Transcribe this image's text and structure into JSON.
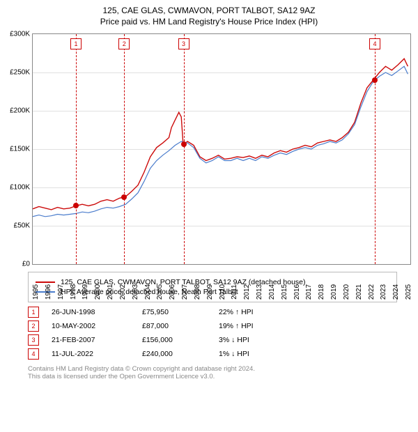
{
  "title_line1": "125, CAE GLAS, CWMAVON, PORT TALBOT, SA12 9AZ",
  "title_line2": "Price paid vs. HM Land Registry's House Price Index (HPI)",
  "axes": {
    "y_labels": [
      "£0",
      "£50K",
      "£100K",
      "£150K",
      "£200K",
      "£250K",
      "£300K"
    ],
    "y_min": 0,
    "y_max": 300,
    "x_labels": [
      "1995",
      "1996",
      "1997",
      "1998",
      "1999",
      "2000",
      "2001",
      "2002",
      "2003",
      "2004",
      "2005",
      "2006",
      "2007",
      "2008",
      "2009",
      "2010",
      "2011",
      "2012",
      "2013",
      "2014",
      "2015",
      "2016",
      "2017",
      "2018",
      "2019",
      "2020",
      "2021",
      "2022",
      "2023",
      "2024",
      "2025"
    ],
    "x_min": 1995,
    "x_max": 2025.5,
    "grid_color": "#e0e0e0",
    "border_color": "#888888"
  },
  "series": [
    {
      "label": "125, CAE GLAS, CWMAVON, PORT TALBOT, SA12 9AZ (detached house)",
      "color": "#cc0a0a",
      "width": 1.4,
      "points": [
        [
          1995,
          72
        ],
        [
          1995.5,
          75
        ],
        [
          1996,
          73
        ],
        [
          1996.5,
          71
        ],
        [
          1997,
          74
        ],
        [
          1997.5,
          72
        ],
        [
          1998,
          73
        ],
        [
          1998.5,
          76
        ],
        [
          1999,
          78
        ],
        [
          1999.5,
          76
        ],
        [
          2000,
          78
        ],
        [
          2000.5,
          82
        ],
        [
          2001,
          84
        ],
        [
          2001.5,
          82
        ],
        [
          2002,
          86
        ],
        [
          2002.5,
          88
        ],
        [
          2003,
          95
        ],
        [
          2003.5,
          103
        ],
        [
          2004,
          120
        ],
        [
          2004.5,
          140
        ],
        [
          2005,
          152
        ],
        [
          2005.5,
          158
        ],
        [
          2006,
          165
        ],
        [
          2006.2,
          178
        ],
        [
          2006.5,
          188
        ],
        [
          2006.8,
          198
        ],
        [
          2007,
          192
        ],
        [
          2007.15,
          156
        ],
        [
          2007.5,
          160
        ],
        [
          2008,
          155
        ],
        [
          2008.5,
          140
        ],
        [
          2009,
          135
        ],
        [
          2009.5,
          138
        ],
        [
          2010,
          142
        ],
        [
          2010.5,
          137
        ],
        [
          2011,
          138
        ],
        [
          2011.5,
          140
        ],
        [
          2012,
          139
        ],
        [
          2012.5,
          141
        ],
        [
          2013,
          138
        ],
        [
          2013.5,
          142
        ],
        [
          2014,
          140
        ],
        [
          2014.5,
          145
        ],
        [
          2015,
          148
        ],
        [
          2015.5,
          146
        ],
        [
          2016,
          150
        ],
        [
          2016.5,
          152
        ],
        [
          2017,
          155
        ],
        [
          2017.5,
          153
        ],
        [
          2018,
          158
        ],
        [
          2018.5,
          160
        ],
        [
          2019,
          162
        ],
        [
          2019.5,
          160
        ],
        [
          2020,
          165
        ],
        [
          2020.5,
          172
        ],
        [
          2021,
          185
        ],
        [
          2021.5,
          210
        ],
        [
          2022,
          230
        ],
        [
          2022.5,
          240
        ],
        [
          2023,
          250
        ],
        [
          2023.5,
          258
        ],
        [
          2024,
          253
        ],
        [
          2024.5,
          260
        ],
        [
          2025,
          268
        ],
        [
          2025.3,
          258
        ]
      ]
    },
    {
      "label": "HPI: Average price, detached house, Neath Port Talbot",
      "color": "#4a7ccc",
      "width": 1.2,
      "points": [
        [
          1995,
          62
        ],
        [
          1995.5,
          64
        ],
        [
          1996,
          62
        ],
        [
          1996.5,
          63
        ],
        [
          1997,
          65
        ],
        [
          1997.5,
          64
        ],
        [
          1998,
          65
        ],
        [
          1998.5,
          66
        ],
        [
          1999,
          68
        ],
        [
          1999.5,
          67
        ],
        [
          2000,
          69
        ],
        [
          2000.5,
          72
        ],
        [
          2001,
          74
        ],
        [
          2001.5,
          73
        ],
        [
          2002,
          75
        ],
        [
          2002.5,
          78
        ],
        [
          2003,
          85
        ],
        [
          2003.5,
          93
        ],
        [
          2004,
          108
        ],
        [
          2004.5,
          125
        ],
        [
          2005,
          135
        ],
        [
          2005.5,
          142
        ],
        [
          2006,
          148
        ],
        [
          2006.5,
          155
        ],
        [
          2007,
          160
        ],
        [
          2007.5,
          158
        ],
        [
          2008,
          152
        ],
        [
          2008.5,
          138
        ],
        [
          2009,
          132
        ],
        [
          2009.5,
          135
        ],
        [
          2010,
          140
        ],
        [
          2010.5,
          135
        ],
        [
          2011,
          135
        ],
        [
          2011.5,
          138
        ],
        [
          2012,
          135
        ],
        [
          2012.5,
          138
        ],
        [
          2013,
          135
        ],
        [
          2013.5,
          140
        ],
        [
          2014,
          138
        ],
        [
          2014.5,
          142
        ],
        [
          2015,
          145
        ],
        [
          2015.5,
          143
        ],
        [
          2016,
          147
        ],
        [
          2016.5,
          150
        ],
        [
          2017,
          152
        ],
        [
          2017.5,
          150
        ],
        [
          2018,
          155
        ],
        [
          2018.5,
          157
        ],
        [
          2019,
          160
        ],
        [
          2019.5,
          158
        ],
        [
          2020,
          162
        ],
        [
          2020.5,
          170
        ],
        [
          2021,
          182
        ],
        [
          2021.5,
          205
        ],
        [
          2022,
          225
        ],
        [
          2022.5,
          238
        ],
        [
          2023,
          245
        ],
        [
          2023.5,
          250
        ],
        [
          2024,
          246
        ],
        [
          2024.5,
          252
        ],
        [
          2025,
          258
        ],
        [
          2025.3,
          248
        ]
      ]
    }
  ],
  "markers": [
    {
      "num": "1",
      "x": 1998.48,
      "y": 76,
      "date": "26-JUN-1998",
      "price": "£75,950",
      "delta": "22% ↑ HPI"
    },
    {
      "num": "2",
      "x": 2002.36,
      "y": 87,
      "date": "10-MAY-2002",
      "price": "£87,000",
      "delta": "19% ↑ HPI"
    },
    {
      "num": "3",
      "x": 2007.14,
      "y": 156,
      "date": "21-FEB-2007",
      "price": "£156,000",
      "delta": "3% ↓ HPI"
    },
    {
      "num": "4",
      "x": 2022.53,
      "y": 240,
      "date": "11-JUL-2022",
      "price": "£240,000",
      "delta": "1% ↓ HPI"
    }
  ],
  "footer1": "Contains HM Land Registry data © Crown copyright and database right 2024.",
  "footer2": "This data is licensed under the Open Government Licence v3.0."
}
